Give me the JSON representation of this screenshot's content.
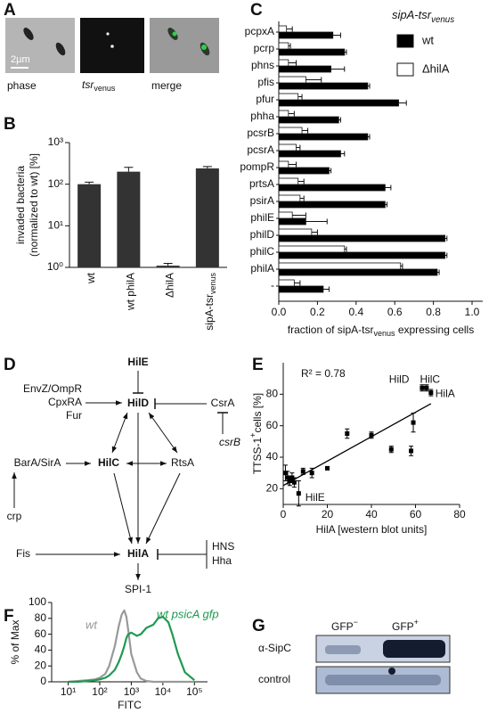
{
  "panel_A": {
    "letter": "A",
    "captions": [
      {
        "text": "phase"
      },
      {
        "text": "tsr",
        "sub": "venus"
      },
      {
        "text": "merge"
      }
    ],
    "scale_bar": "2µm"
  },
  "chart_data": [
    {
      "letter": "B",
      "type": "bar",
      "ylabel": [
        "invaded bacteria",
        "(normalized to wt) [%]"
      ],
      "categories": [
        "wt",
        "wt philA",
        "ΔhilA",
        "sipA-tsr"
      ],
      "last_category_sub": "venus",
      "values": [
        100,
        200,
        1.1,
        240
      ],
      "errors": [
        12,
        55,
        0.15,
        25
      ],
      "color": "#333333",
      "log_y": true,
      "ylim": [
        1,
        1000
      ],
      "yticks": [
        {
          "value": 1,
          "label": "10⁰"
        },
        {
          "value": 10,
          "label": "10¹"
        },
        {
          "value": 100,
          "label": "10²"
        },
        {
          "value": 1000,
          "label": "10³"
        }
      ]
    },
    {
      "letter": "C",
      "type": "bar",
      "orientation": "horizontal",
      "categories": [
        "pcpxA",
        "pcrp",
        "phns",
        "pfis",
        "pfur",
        "phha",
        "pcsrB",
        "pcsrA",
        "pompR",
        "prtsA",
        "psirA",
        "philE",
        "philD",
        "philC",
        "philA",
        "-"
      ],
      "series": [
        {
          "name": "wt",
          "color": "#000000",
          "values": [
            0.28,
            0.34,
            0.27,
            0.46,
            0.62,
            0.31,
            0.46,
            0.32,
            0.26,
            0.55,
            0.55,
            0.14,
            0.86,
            0.86,
            0.82,
            0.23
          ],
          "errors": [
            0.04,
            0.01,
            0.07,
            0.01,
            0.04,
            0.01,
            0.01,
            0.02,
            0.01,
            0.03,
            0.01,
            0.11,
            0.01,
            0.01,
            0.01,
            0.03
          ]
        },
        {
          "name": "ΔhilA",
          "color": "#ffffff",
          "values": [
            0.04,
            0.05,
            0.05,
            0.14,
            0.1,
            0.05,
            0.12,
            0.09,
            0.05,
            0.1,
            0.11,
            0.07,
            0.17,
            0.34,
            0.63,
            0.08
          ],
          "errors": [
            0.03,
            0.01,
            0.04,
            0.08,
            0.02,
            0.03,
            0.03,
            0.02,
            0.04,
            0.03,
            0.02,
            0.07,
            0.03,
            0.01,
            0.01,
            0.03
          ]
        }
      ],
      "legend_title": {
        "text": "sipA-tsr",
        "sub": "venus"
      },
      "xlabel": {
        "text": "fraction of sipA-tsr",
        "sub": "venus",
        "after": " expressing cells"
      },
      "xlim": [
        0,
        1
      ],
      "xticks": [
        {
          "value": 0,
          "label": "0.0"
        },
        0.2,
        0.4,
        0.6,
        0.8,
        {
          "value": 1,
          "label": "1.0"
        }
      ]
    },
    {
      "letter": "E",
      "type": "scatter",
      "color": "#000000",
      "x": [
        1,
        2,
        3,
        4,
        5,
        7,
        9,
        13,
        20,
        29,
        40,
        49,
        58,
        59,
        63,
        65,
        67
      ],
      "y": [
        30,
        27,
        25,
        27,
        24,
        17,
        31,
        30,
        33,
        55,
        54,
        45,
        44,
        62,
        84,
        84,
        81
      ],
      "errors": [
        5,
        4,
        3,
        3,
        3,
        8,
        2,
        3,
        1,
        3,
        2,
        2,
        3,
        6,
        2,
        2,
        2
      ],
      "fit": {
        "x": [
          0,
          67
        ],
        "y": [
          22,
          74
        ]
      },
      "r2_label": "R² = 0.78",
      "annotations": [
        "HilD",
        "HilC",
        "HilA",
        "HilE"
      ],
      "xlabel": {
        "text": "HilA [western blot units]"
      },
      "ylabel": {
        "text": "TTSS-1",
        "sup": "+",
        "after": "cells [%]"
      },
      "xlim": [
        0,
        80
      ],
      "xticks": [
        0,
        20,
        40,
        60,
        80
      ],
      "ylim": [
        10,
        100
      ],
      "yticks": [
        20,
        40,
        60,
        80
      ]
    },
    {
      "letter": "F",
      "type": "line",
      "log_x": true,
      "xlabel": "FITC",
      "ylabel": "% of Max",
      "x": [
        10,
        20,
        40,
        70,
        100,
        150,
        200,
        300,
        400,
        500,
        600,
        700,
        800,
        1000,
        1500,
        2000,
        3000,
        5000,
        7000,
        10000,
        15000,
        20000,
        30000,
        50000,
        100000
      ],
      "series": [
        {
          "name": "wt",
          "color": "#999999",
          "values": [
            0,
            1,
            2,
            3,
            5,
            10,
            20,
            45,
            70,
            85,
            90,
            82,
            65,
            35,
            12,
            4,
            1,
            0,
            0,
            0,
            0,
            0,
            0,
            0,
            0
          ]
        },
        {
          "name": "wt psicA gfp",
          "color": "#1e9a50",
          "values": [
            0,
            0,
            1,
            2,
            3,
            5,
            8,
            15,
            25,
            35,
            45,
            55,
            60,
            62,
            58,
            60,
            68,
            72,
            80,
            82,
            75,
            60,
            35,
            12,
            2
          ]
        }
      ],
      "xlim": [
        3,
        260000
      ],
      "xticks": [
        {
          "value": 10,
          "label": "10¹"
        },
        {
          "value": 100,
          "label": "10²"
        },
        {
          "value": 1000,
          "label": "10³"
        },
        {
          "value": 10000,
          "label": "10⁴"
        },
        {
          "value": 100000,
          "label": "10⁵"
        }
      ],
      "ylim": [
        0,
        100
      ],
      "yticks": [
        0,
        20,
        40,
        60,
        80,
        100
      ]
    }
  ],
  "diagram": {
    "letter": "D",
    "nodes": [
      "HilE",
      "HilD",
      "EnvZ/OmpR",
      "CpxRA",
      "Fur",
      "CsrA",
      "csrB",
      "HilC",
      "BarA/SirA",
      "RtsA",
      "crp",
      "Fis",
      "HilA",
      "HNS",
      "Hha",
      "SPI-1"
    ]
  },
  "panel_G": {
    "letter": "G",
    "columns": [
      {
        "text": "GFP",
        "sup": "−"
      },
      {
        "text": "GFP",
        "sup": "+"
      }
    ],
    "rows": [
      "α-SipC",
      "control"
    ]
  }
}
